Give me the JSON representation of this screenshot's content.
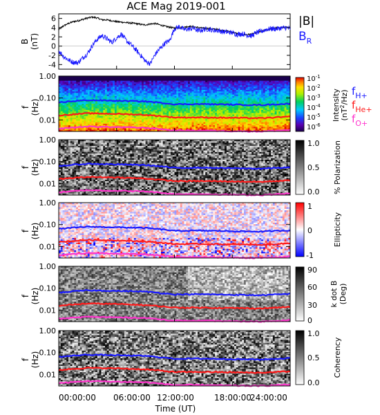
{
  "title": "ACE Mag 2019-001",
  "colors": {
    "total_field": "#000000",
    "radial_field": "#1a1aff",
    "f_h": "#1a1aff",
    "f_he": "#ff1a1a",
    "f_o": "#ff33cc"
  },
  "x_axis": {
    "label": "Time (UT)",
    "ticks": [
      "00:00:00",
      "06:00:00",
      "12:00:00",
      "18:00:00",
      "24:00:00"
    ]
  },
  "legend": {
    "total": "|B|",
    "radial_main": "B",
    "radial_sub": "R",
    "fh_main": "f",
    "fh_sub": "H+",
    "fhe_main": "f",
    "fhe_sub": "He+",
    "fo_main": "f",
    "fo_sub": "O+"
  },
  "panel_labels": {
    "b_line1": "B",
    "b_line2": "(nT)",
    "f_line1": "f",
    "f_line2": "(Hz)"
  },
  "colorbars": {
    "intensity": {
      "title": "Intensity",
      "unit_prefix": "(nT",
      "unit_sup": "2",
      "unit_suffix": "/Hz)",
      "ticks": [
        [
          "10",
          "-1"
        ],
        [
          "10",
          "-2"
        ],
        [
          "10",
          "-3"
        ],
        [
          "10",
          "-4"
        ],
        [
          "10",
          "-5"
        ],
        [
          "10",
          "-6"
        ]
      ]
    },
    "polarization": {
      "title": "% Polarization",
      "ticks": [
        "1.0",
        "0.5",
        "0.0"
      ]
    },
    "ellipticity": {
      "title": "Ellipticity",
      "ticks": [
        "1",
        "0",
        "-1"
      ]
    },
    "kdotb": {
      "title_line1": "k dot B",
      "title_line2": "(Deg)",
      "ticks": [
        "90",
        "60",
        "30",
        "0"
      ]
    },
    "coherency": {
      "title": "Coherency",
      "ticks": [
        "1.0",
        "0.5",
        "0.0"
      ]
    }
  },
  "freq_ticks": [
    "1.00",
    "0.10",
    "0.01"
  ],
  "chart_data": [
    {
      "type": "line",
      "ylabel": "B (nT)",
      "xlim": [
        0,
        24
      ],
      "ylim": [
        -5,
        7
      ],
      "yticks": [
        6,
        4,
        2,
        0,
        -2,
        -4
      ],
      "series": [
        {
          "name": "|B|",
          "x": [
            0,
            0.5,
            1,
            1.5,
            2,
            2.5,
            3,
            3.5,
            4,
            4.5,
            5,
            5.5,
            6,
            6.5,
            7,
            7.5,
            8,
            8.5,
            9,
            9.5,
            10,
            10.5,
            11,
            11.5,
            12,
            12.5,
            13,
            13.5,
            14,
            14.5,
            15,
            15.5,
            16,
            16.5,
            17,
            17.5,
            18,
            18.5,
            19,
            19.5,
            20,
            20.5,
            21,
            21.5,
            22,
            22.5,
            23,
            23.5,
            24
          ],
          "y": [
            3.6,
            4.4,
            4.9,
            5.3,
            5.5,
            5.8,
            6.1,
            6.3,
            6.1,
            5.7,
            5.7,
            5.5,
            5.3,
            5.2,
            5.1,
            5.0,
            4.9,
            4.7,
            4.6,
            4.8,
            4.9,
            4.6,
            4.3,
            4.1,
            3.9,
            4.0,
            4.1,
            4.3,
            4.2,
            4.0,
            3.9,
            3.8,
            3.7,
            3.6,
            3.4,
            3.2,
            3.0,
            2.7,
            2.5,
            2.5,
            2.6,
            2.9,
            3.2,
            3.5,
            3.8,
            3.9,
            4.0,
            4.1,
            3.9
          ]
        },
        {
          "name": "B_R",
          "x": [
            0,
            0.5,
            1,
            1.5,
            2,
            2.5,
            3,
            3.5,
            4,
            4.5,
            5,
            5.5,
            6,
            6.5,
            7,
            7.5,
            8,
            8.5,
            9,
            9.5,
            10,
            10.5,
            11,
            11.5,
            12,
            12.5,
            13,
            13.5,
            14,
            14.5,
            15,
            15.5,
            16,
            16.5,
            17,
            17.5,
            18,
            18.5,
            19,
            19.5,
            20,
            20.5,
            21,
            21.5,
            22,
            22.5,
            23,
            23.5,
            24
          ],
          "y": [
            -1.0,
            -2.2,
            -3.0,
            -3.5,
            -3.6,
            -2.5,
            -1.6,
            0.2,
            1.5,
            2.3,
            1.6,
            0.8,
            1.8,
            2.6,
            1.2,
            0.3,
            -0.8,
            -2.0,
            -3.3,
            -3.8,
            -1.8,
            -0.5,
            0.6,
            1.2,
            3.8,
            4.2,
            3.6,
            3.7,
            3.9,
            3.3,
            3.6,
            3.7,
            3.4,
            3.4,
            3.1,
            3.0,
            2.9,
            2.5,
            2.7,
            2.4,
            2.2,
            2.9,
            3.2,
            3.6,
            3.8,
            3.7,
            3.9,
            4.0,
            3.8
          ]
        }
      ]
    },
    {
      "type": "heatmap",
      "title": "Intensity (nT^2/Hz)",
      "ylabel": "f (Hz)",
      "yscale": "log",
      "ylim": [
        0.003,
        1
      ],
      "colorbar_range": [
        -6,
        -1
      ],
      "series": [
        {
          "name": "f_H+",
          "x": [
            0,
            3,
            6,
            9,
            12,
            15,
            18,
            21,
            24
          ],
          "y": [
            0.063,
            0.08,
            0.075,
            0.07,
            0.052,
            0.053,
            0.05,
            0.048,
            0.055
          ]
        },
        {
          "name": "f_He+",
          "x": [
            0,
            3,
            6,
            9,
            12,
            15,
            18,
            21,
            24
          ],
          "y": [
            0.016,
            0.02,
            0.019,
            0.017,
            0.013,
            0.013,
            0.0125,
            0.012,
            0.014
          ]
        },
        {
          "name": "f_O+",
          "x": [
            0,
            3,
            6,
            9,
            12,
            15,
            18,
            21,
            24
          ],
          "y": [
            0.004,
            0.005,
            0.0047,
            0.0044,
            0.0033,
            0.0033,
            0.0031,
            0.003,
            0.0035
          ]
        }
      ]
    },
    {
      "type": "heatmap",
      "title": "% Polarization",
      "ylabel": "f (Hz)",
      "yscale": "log",
      "colorbar_range": [
        0,
        1
      ]
    },
    {
      "type": "heatmap",
      "title": "Ellipticity",
      "ylabel": "f (Hz)",
      "yscale": "log",
      "colorbar_range": [
        -1,
        1
      ]
    },
    {
      "type": "heatmap",
      "title": "k dot B (Deg)",
      "ylabel": "f (Hz)",
      "yscale": "log",
      "colorbar_range": [
        0,
        90
      ]
    },
    {
      "type": "heatmap",
      "title": "Coherency",
      "ylabel": "f (Hz)",
      "yscale": "log",
      "colorbar_range": [
        0,
        1
      ]
    }
  ]
}
